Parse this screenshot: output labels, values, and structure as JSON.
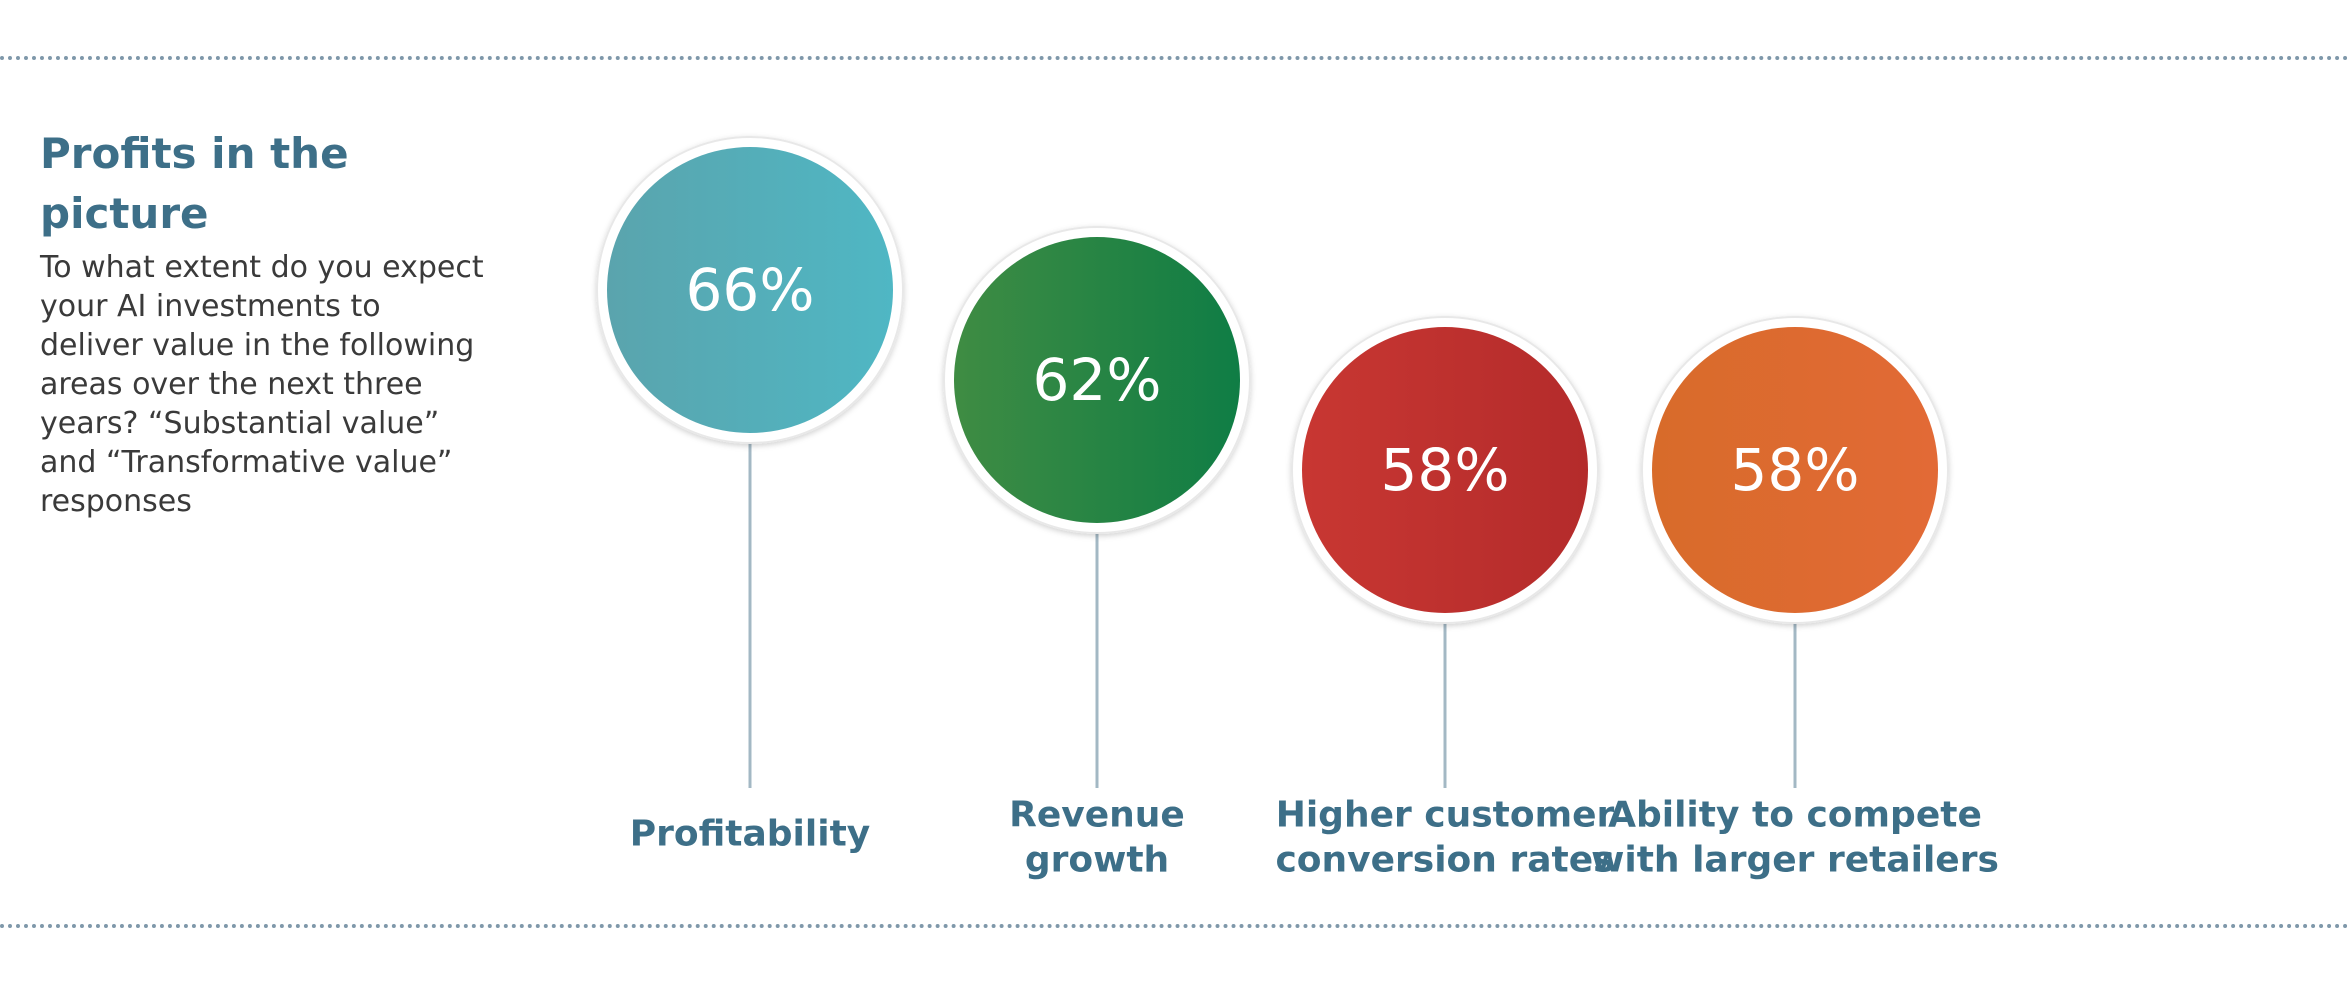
{
  "intro": {
    "title": "Profits in the picture",
    "question": "To what extent do you expect your AI investments to deliver value in the following areas over the next three years? “Substantial value” and “Transformative value” responses"
  },
  "chart_data": {
    "type": "bubble-lollipop",
    "unit": "%",
    "categories": [
      "Profitability",
      "Revenue growth",
      "Higher customer conversion rates",
      "Ability to compete with larger retailers"
    ],
    "values": [
      66,
      62,
      58,
      58
    ],
    "value_labels": [
      "66%",
      "62%",
      "58%",
      "58%"
    ],
    "label_lines": [
      [
        "Profitability"
      ],
      [
        "Revenue",
        "growth"
      ],
      [
        "Higher customer",
        "conversion rates"
      ],
      [
        "Ability to compete",
        "with larger retailers"
      ]
    ],
    "colors": [
      [
        "#5aa4ad",
        "#4fb7c4"
      ],
      [
        "#3f8c43",
        "#0f7d45"
      ],
      [
        "#c83732",
        "#b42b2b"
      ],
      [
        "#d86b2a",
        "#e26a36"
      ]
    ],
    "stem_color": "#a3b8c4",
    "title": "Profits in the picture"
  }
}
